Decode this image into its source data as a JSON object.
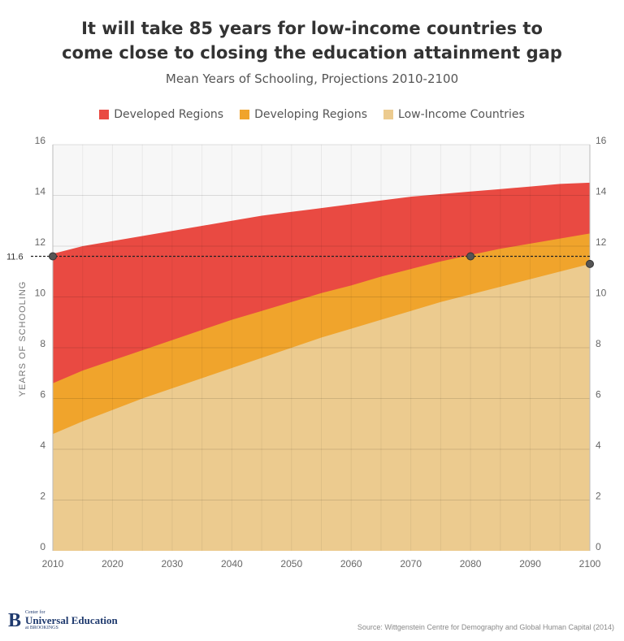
{
  "title_line1": "It will take 85 years for low-income countries to",
  "title_line2": "come close to closing the education attainment gap",
  "subtitle": "Mean Years of Schooling, Projections 2010-2100",
  "legend": [
    {
      "label": "Developed Regions",
      "color": "#e94a42"
    },
    {
      "label": "Developing Regions",
      "color": "#f0a42c"
    },
    {
      "label": "Low-Income Countries",
      "color": "#eccb8f"
    }
  ],
  "reference_label": "11.6",
  "source": "Source: Wittgenstein Centre for Demography and Global Human Capital (2014)",
  "logo": {
    "mark": "B",
    "small_top": "Center for",
    "main": "Universal Education",
    "small_bottom": "at BROOKINGS"
  },
  "chart_data": {
    "type": "area",
    "ylabel": "YEARS OF SCHOOLING",
    "xlabel": "",
    "ylim": [
      0,
      16
    ],
    "yticks": [
      0,
      2,
      4,
      6,
      8,
      10,
      12,
      14,
      16
    ],
    "xlim": [
      2010,
      2100
    ],
    "xticks": [
      2010,
      2020,
      2030,
      2040,
      2050,
      2060,
      2070,
      2080,
      2090,
      2100
    ],
    "x": [
      2010,
      2015,
      2020,
      2025,
      2030,
      2035,
      2040,
      2045,
      2050,
      2055,
      2060,
      2065,
      2070,
      2075,
      2080,
      2085,
      2090,
      2095,
      2100
    ],
    "series": [
      {
        "name": "Developed Regions",
        "color": "#e94a42",
        "values": [
          11.7,
          12.0,
          12.2,
          12.4,
          12.6,
          12.8,
          13.0,
          13.2,
          13.35,
          13.5,
          13.65,
          13.8,
          13.95,
          14.05,
          14.15,
          14.25,
          14.35,
          14.45,
          14.5
        ]
      },
      {
        "name": "Developing Regions",
        "color": "#f0a42c",
        "values": [
          6.6,
          7.1,
          7.5,
          7.9,
          8.3,
          8.7,
          9.1,
          9.45,
          9.8,
          10.15,
          10.45,
          10.8,
          11.1,
          11.4,
          11.65,
          11.9,
          12.1,
          12.3,
          12.5
        ]
      },
      {
        "name": "Low-Income Countries",
        "color": "#eccb8f",
        "values": [
          4.6,
          5.1,
          5.55,
          6.0,
          6.4,
          6.8,
          7.2,
          7.6,
          8.0,
          8.4,
          8.75,
          9.1,
          9.45,
          9.8,
          10.1,
          10.4,
          10.7,
          11.0,
          11.3
        ]
      }
    ],
    "reference_line": 11.6,
    "markers": [
      {
        "x": 2010,
        "y": 11.6
      },
      {
        "x": 2080,
        "y": 11.6
      },
      {
        "x": 2100,
        "y": 11.3
      }
    ],
    "grid": true,
    "legend_position": "top"
  }
}
